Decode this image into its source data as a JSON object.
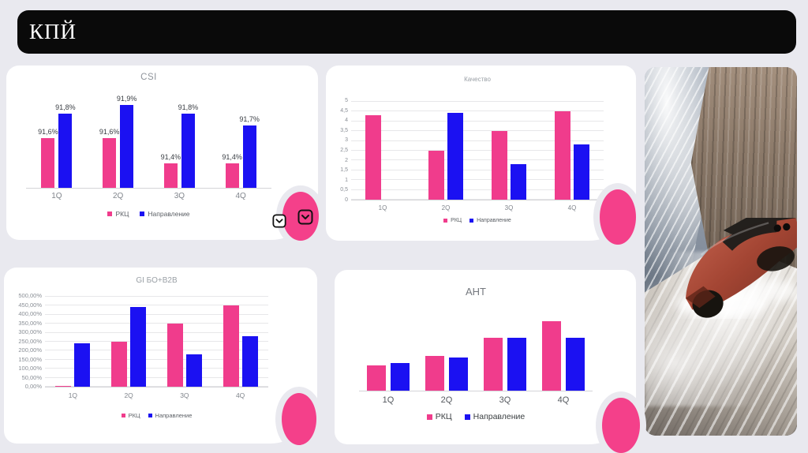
{
  "page": {
    "title": "КПЙ"
  },
  "colors": {
    "background": "#e9e9ef",
    "card": "#ffffff",
    "header_bg": "#0a0a0a",
    "header_text": "#ffffff",
    "rkc": "#f03c8c",
    "direction": "#1b11f2",
    "ellipse": "#f4408a",
    "gridline": "#e7e7e9"
  },
  "decor": {
    "scroll_buttons": [
      "chevron-down",
      "chevron-down"
    ],
    "ellipse_count": 4
  },
  "photo": {
    "label": "mountain-cliff-road-with-red-sports-car-artwork"
  },
  "charts": [
    {
      "id": "csi",
      "type": "bar",
      "title": "CSI",
      "categories": [
        "1Q",
        "2Q",
        "3Q",
        "4Q"
      ],
      "ylim": [
        91.2,
        91.95
      ],
      "grid": false,
      "legend_position": "bottom",
      "show_data_labels": true,
      "y_ticks": [],
      "series": [
        {
          "name": "РКЦ",
          "values": [
            91.6,
            91.6,
            91.4,
            91.4
          ],
          "labels": [
            "91,6%",
            "91,6%",
            "91,4%",
            "91,4%"
          ]
        },
        {
          "name": "Направление",
          "values": [
            91.8,
            91.9,
            91.8,
            91.7
          ],
          "labels": [
            "91,8%",
            "91,9%",
            "91,8%",
            "91,7%"
          ]
        }
      ]
    },
    {
      "id": "quality",
      "type": "bar",
      "title": "Качество",
      "categories": [
        "1Q",
        "2Q",
        "3Q",
        "4Q"
      ],
      "ylim": [
        0,
        5
      ],
      "grid": true,
      "legend_position": "bottom",
      "show_data_labels": false,
      "y_ticks": [
        "5",
        "4,5",
        "4",
        "3,5",
        "3",
        "2,5",
        "2",
        "1,5",
        "1",
        "0,5",
        "0"
      ],
      "series": [
        {
          "name": "РКЦ",
          "values": [
            4.3,
            2.5,
            3.5,
            4.5
          ]
        },
        {
          "name": "Направление",
          "values": [
            0,
            4.4,
            1.8,
            2.8
          ]
        }
      ]
    },
    {
      "id": "gi",
      "type": "bar",
      "title": "GI БО+В2В",
      "categories": [
        "1Q",
        "2Q",
        "3Q",
        "4Q"
      ],
      "ylim": [
        0,
        500
      ],
      "grid": true,
      "legend_position": "bottom",
      "show_data_labels": false,
      "y_ticks": [
        "500,00%",
        "450,00%",
        "400,00%",
        "350,00%",
        "300,00%",
        "250,00%",
        "200,00%",
        "150,00%",
        "100,00%",
        "50,00%",
        "0,00%"
      ],
      "series": [
        {
          "name": "РКЦ",
          "values": [
            5,
            250,
            350,
            450
          ]
        },
        {
          "name": "Направление",
          "values": [
            240,
            440,
            180,
            280
          ]
        }
      ]
    },
    {
      "id": "ant",
      "type": "bar",
      "title": "АНТ",
      "categories": [
        "1Q",
        "2Q",
        "3Q",
        "4Q"
      ],
      "ylim": [
        0,
        3
      ],
      "grid": false,
      "legend_position": "bottom",
      "show_data_labels": false,
      "y_ticks": [],
      "series": [
        {
          "name": "РКЦ",
          "values": [
            0.95,
            1.32,
            2.0,
            2.6
          ]
        },
        {
          "name": "Направление",
          "values": [
            1.05,
            1.26,
            2.0,
            2.0
          ]
        }
      ]
    }
  ]
}
